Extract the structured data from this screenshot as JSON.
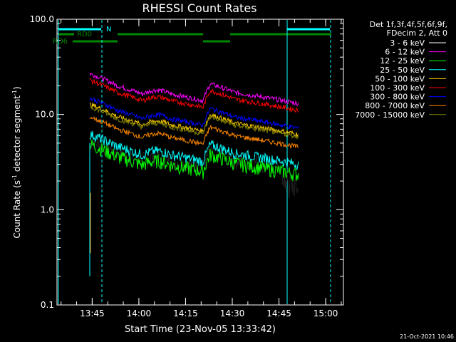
{
  "chart_data": {
    "type": "line",
    "title": "RHESSI Count Rates",
    "xlabel": "Start Time (23-Nov-05 13:33:42)",
    "ylabel_main": "Count Rate (s",
    "ylabel_exp": "-1",
    "ylabel_mid": " detector segment",
    "ylabel_exp2": "-1",
    "ylabel_end": ")",
    "y_scale": "log",
    "ylim": [
      0.1,
      100.0
    ],
    "y_ticks": [
      "0.1",
      "1.0",
      "10.0",
      "100.0"
    ],
    "xlim_minutes": [
      0.0,
      92.0
    ],
    "x_ticks": [
      "13:45",
      "14:00",
      "14:15",
      "14:30",
      "14:45",
      "15:00"
    ],
    "x_tick_minutes": [
      11.3,
      26.3,
      41.3,
      56.3,
      71.3,
      86.3
    ],
    "legend_header": [
      "Det 1f,3f,4f,5f,6f,9f,",
      "FDecim 2, Att 0"
    ],
    "series": [
      {
        "name": "3 - 6 keV",
        "color": "#000000",
        "base": 4.0
      },
      {
        "name": "6 - 12 keV",
        "color": "#ff00ff",
        "base": 20.0
      },
      {
        "name": "12 - 25 keV",
        "color": "#00ff00",
        "base": 3.6
      },
      {
        "name": "25 - 50 keV",
        "color": "#00ffff",
        "base": 4.6
      },
      {
        "name": "50 - 100 keV",
        "color": "#ffcc00",
        "base": 9.5
      },
      {
        "name": "100 - 300 keV",
        "color": "#ff0000",
        "base": 17.0
      },
      {
        "name": "300 - 800 keV",
        "color": "#0000ff",
        "base": 11.0
      },
      {
        "name": "800 - 7000 keV",
        "color": "#ff8800",
        "base": 7.0
      },
      {
        "name": "7000 - 15000 keV",
        "color": "#808000",
        "base": 9.0
      }
    ],
    "flag_labels": {
      "n": "N",
      "rd0": "RD0",
      "rd6": "RD6"
    },
    "footer_date": "21-Oct-2021 10:46"
  }
}
